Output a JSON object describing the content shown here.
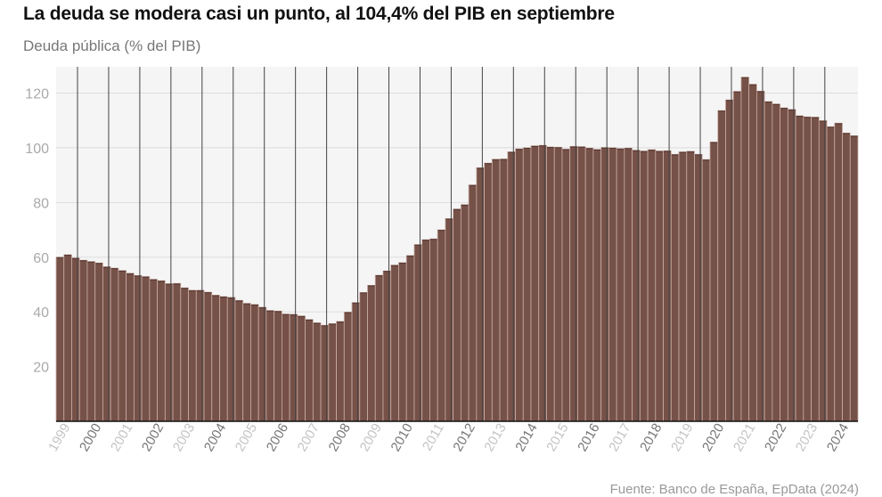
{
  "chart_data": {
    "type": "bar",
    "title": "La deuda se modera casi un punto, al 104,4% del PIB en septiembre",
    "subtitle": "Deuda pública (% del PIB)",
    "source": "Fuente: Banco de España, EpData (2024)",
    "xlabel": "",
    "ylabel": "Deuda pública (% del PIB)",
    "ylim": [
      0,
      130
    ],
    "yticks": [
      20,
      40,
      60,
      80,
      100,
      120
    ],
    "grid": true,
    "frequency": "quarterly",
    "start": "1999-Q1",
    "end": "2024-Q3",
    "year_labels": [
      "1999",
      "2000",
      "2001",
      "2002",
      "2003",
      "2004",
      "2005",
      "2006",
      "2007",
      "2008",
      "2009",
      "2010",
      "2011",
      "2012",
      "2013",
      "2014",
      "2015",
      "2016",
      "2017",
      "2018",
      "2019",
      "2020",
      "2021",
      "2022",
      "2023",
      "2024"
    ],
    "values": [
      60.0,
      60.9,
      59.7,
      58.9,
      58.4,
      57.9,
      56.5,
      56.0,
      55.1,
      54.1,
      53.3,
      52.9,
      51.9,
      51.4,
      50.3,
      50.4,
      48.8,
      47.9,
      47.9,
      47.2,
      46.1,
      45.6,
      45.3,
      44.2,
      43.1,
      42.7,
      41.7,
      40.5,
      40.3,
      39.2,
      39.1,
      38.5,
      37.2,
      36.0,
      35.1,
      35.7,
      36.5,
      39.9,
      43.4,
      47.1,
      49.7,
      53.4,
      55.0,
      57.1,
      58.0,
      60.6,
      64.6,
      66.4,
      66.7,
      70.0,
      74.1,
      77.6,
      79.2,
      86.4,
      92.7,
      94.4,
      95.8,
      95.9,
      98.5,
      99.6,
      100.0,
      100.7,
      100.9,
      100.3,
      100.2,
      99.5,
      100.5,
      100.4,
      99.9,
      99.4,
      100.1,
      100.0,
      99.7,
      99.9,
      99.1,
      98.8,
      99.3,
      98.8,
      98.9,
      97.6,
      98.5,
      98.7,
      97.6,
      95.7,
      102.1,
      113.6,
      117.5,
      120.6,
      125.8,
      123.2,
      120.7,
      116.9,
      116.0,
      114.6,
      114.0,
      111.7,
      111.3,
      111.2,
      109.9,
      107.7,
      109.0,
      105.4,
      104.4
    ],
    "colors": {
      "bar": "#765148",
      "bar_separator": "#c9aea6",
      "plot_bg": "#f5f5f5",
      "grid": "#dddddd",
      "year_line": "#444444",
      "label_dark": "#777777",
      "label_light": "#c4c4c4"
    }
  }
}
